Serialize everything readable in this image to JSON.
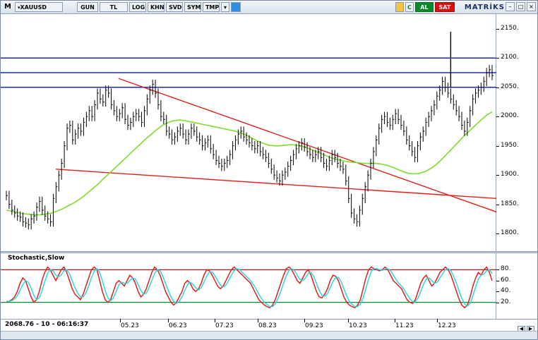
{
  "toolbar": {
    "menu_label": "M",
    "symbol": "XAUUSD",
    "period": "GUN",
    "currency": "TL",
    "buttons": [
      "LOG",
      "KHN",
      "SVD",
      "SYM",
      "TMP"
    ],
    "buy_label": "AL",
    "sell_label": "SAT",
    "brand": "MATRİKS"
  },
  "colors": {
    "price_bars": "#000000",
    "moving_average": "#7ddc2c",
    "trend_lines": "#e0201a",
    "horizontal_levels": "#1a2bb0",
    "stoch_k": "#e0201a",
    "stoch_d": "#2ed6e0",
    "stoch_bounds": "#0a8a2a"
  },
  "status": {
    "readout": "2068.76 - 10 - 06:16:37"
  },
  "chart_data": [
    {
      "type": "line",
      "panel": "price",
      "ylim": [
        1770,
        2175
      ],
      "y_ticks": [
        "1800.",
        "1850.",
        "1900.",
        "1950.",
        "2000.",
        "2050.",
        "2100.",
        "2150."
      ],
      "x_ticks": [
        "05.23",
        "06.23",
        "07.23",
        "08.23",
        "09.23",
        "10.23",
        "11.23",
        "12.23"
      ],
      "horizontal_levels": [
        2100,
        2075,
        2050
      ],
      "series": [
        {
          "role": "price_bars",
          "values": [
            1865,
            1850,
            1840,
            1835,
            1830,
            1828,
            1820,
            1818,
            1815,
            1825,
            1830,
            1845,
            1855,
            1840,
            1830,
            1825,
            1820,
            1860,
            1880,
            1900,
            1920,
            1950,
            1980,
            1985,
            1960,
            1970,
            1980,
            1975,
            1990,
            2000,
            2010,
            2000,
            2020,
            2040,
            2030,
            2025,
            2045,
            2040,
            2020,
            2010,
            2000,
            2005,
            2015,
            1995,
            1985,
            1990,
            2000,
            2005,
            2000,
            1990,
            2010,
            2030,
            2045,
            2055,
            2040,
            2020,
            2000,
            1995,
            1975,
            1970,
            1960,
            1965,
            1975,
            1980,
            1970,
            1960,
            1970,
            1980,
            1975,
            1965,
            1960,
            1950,
            1955,
            1960,
            1945,
            1935,
            1925,
            1920,
            1915,
            1920,
            1925,
            1935,
            1950,
            1960,
            1970,
            1975,
            1965,
            1960,
            1955,
            1950,
            1945,
            1950,
            1940,
            1935,
            1930,
            1920,
            1910,
            1900,
            1895,
            1890,
            1900,
            1905,
            1915,
            1925,
            1935,
            1945,
            1950,
            1955,
            1948,
            1940,
            1935,
            1930,
            1935,
            1940,
            1930,
            1920,
            1915,
            1925,
            1935,
            1930,
            1920,
            1915,
            1910,
            1890,
            1860,
            1835,
            1825,
            1820,
            1840,
            1860,
            1880,
            1900,
            1920,
            1940,
            1960,
            1980,
            1995,
            2000,
            1990,
            1985,
            1995,
            2005,
            1995,
            1985,
            1975,
            1960,
            1950,
            1940,
            1930,
            1950,
            1965,
            1975,
            1990,
            2000,
            2010,
            2020,
            2035,
            2045,
            2060,
            2050,
            2040,
            2030,
            2020,
            2010,
            2000,
            1985,
            1975,
            1990,
            2010,
            2030,
            2040,
            2045,
            2050,
            2060,
            2075,
            2080,
            2070
          ]
        },
        {
          "role": "moving_average",
          "values": [
            1840,
            1838,
            1836,
            1834,
            1833,
            1832,
            1832,
            1833,
            1835,
            1838,
            1842,
            1847,
            1852,
            1858,
            1865,
            1873,
            1881,
            1890,
            1899,
            1908,
            1917,
            1926,
            1935,
            1944,
            1953,
            1962,
            1970,
            1978,
            1985,
            1990,
            1993,
            1994,
            1993,
            1991,
            1989,
            1987,
            1985,
            1983,
            1981,
            1979,
            1977,
            1975,
            1972,
            1968,
            1963,
            1958,
            1954,
            1951,
            1950,
            1950,
            1951,
            1952,
            1951,
            1949,
            1946,
            1942,
            1938,
            1934,
            1930,
            1927,
            1925,
            1923,
            1922,
            1921,
            1920,
            1920,
            1920,
            1919,
            1917,
            1914,
            1910,
            1906,
            1903,
            1902,
            1903,
            1906,
            1911,
            1918,
            1927,
            1937,
            1947,
            1957,
            1967,
            1976,
            1985,
            1994,
            2002,
            2008
          ]
        }
      ],
      "trend_lines": [
        {
          "from": [
            "04.23",
            2065
          ],
          "to": [
            "end",
            1837
          ]
        },
        {
          "from": [
            "04.23",
            1910
          ],
          "to": [
            "end",
            1860
          ]
        }
      ]
    },
    {
      "type": "line",
      "panel": "stochastic",
      "title": "Stochastic,Slow",
      "ylim": [
        0,
        100
      ],
      "y_ticks": [
        "80.",
        "60.",
        "40.",
        "20."
      ],
      "bounds": [
        80,
        20
      ],
      "series": [
        {
          "role": "stoch_k",
          "values": [
            20,
            22,
            25,
            30,
            40,
            55,
            65,
            60,
            45,
            30,
            20,
            25,
            40,
            60,
            75,
            85,
            80,
            70,
            60,
            70,
            80,
            85,
            75,
            60,
            45,
            35,
            30,
            25,
            35,
            50,
            65,
            80,
            85,
            80,
            60,
            40,
            25,
            20,
            25,
            40,
            55,
            60,
            55,
            50,
            60,
            70,
            65,
            55,
            40,
            30,
            35,
            45,
            60,
            75,
            85,
            80,
            70,
            55,
            40,
            30,
            20,
            15,
            20,
            30,
            40,
            55,
            60,
            55,
            45,
            40,
            45,
            55,
            70,
            80,
            78,
            70,
            60,
            50,
            45,
            50,
            60,
            70,
            80,
            85,
            80,
            75,
            70,
            65,
            60,
            55,
            45,
            35,
            25,
            20,
            15,
            12,
            10,
            15,
            25,
            40,
            55,
            70,
            82,
            85,
            80,
            70,
            60,
            55,
            65,
            75,
            80,
            70,
            55,
            40,
            30,
            28,
            35,
            45,
            60,
            70,
            68,
            60,
            45,
            30,
            20,
            15,
            12,
            10,
            15,
            25,
            45,
            65,
            80,
            85,
            82,
            80,
            78,
            80,
            85,
            80,
            70,
            60,
            55,
            50,
            45,
            35,
            25,
            20,
            18,
            25,
            40,
            55,
            65,
            70,
            60,
            50,
            55,
            65,
            75,
            80,
            85,
            80,
            70,
            55,
            40,
            25,
            15,
            10,
            15,
            30,
            50,
            65,
            75,
            70,
            80,
            85,
            75,
            60
          ]
        },
        {
          "role": "stoch_d",
          "values": [
            22,
            22,
            23,
            26,
            32,
            42,
            53,
            60,
            57,
            47,
            33,
            25,
            28,
            42,
            58,
            73,
            80,
            78,
            70,
            67,
            70,
            78,
            80,
            73,
            60,
            47,
            37,
            30,
            30,
            37,
            50,
            65,
            77,
            82,
            75,
            60,
            42,
            28,
            23,
            28,
            40,
            52,
            57,
            55,
            55,
            60,
            65,
            63,
            53,
            42,
            35,
            37,
            47,
            60,
            73,
            80,
            78,
            68,
            55,
            42,
            30,
            22,
            18,
            22,
            30,
            42,
            52,
            57,
            53,
            47,
            43,
            47,
            57,
            68,
            76,
            76,
            69,
            60,
            52,
            48,
            52,
            60,
            70,
            78,
            82,
            80,
            75,
            70,
            65,
            60,
            53,
            45,
            35,
            27,
            20,
            16,
            12,
            12,
            17,
            27,
            40,
            55,
            69,
            79,
            82,
            78,
            70,
            62,
            60,
            65,
            73,
            75,
            68,
            55,
            42,
            33,
            31,
            36,
            47,
            58,
            66,
            66,
            58,
            45,
            32,
            22,
            16,
            12,
            12,
            17,
            28,
            45,
            63,
            77,
            82,
            82,
            80,
            79,
            81,
            82,
            78,
            70,
            62,
            55,
            50,
            43,
            35,
            27,
            21,
            21,
            28,
            40,
            53,
            63,
            65,
            60,
            55,
            57,
            65,
            73,
            80,
            82,
            78,
            68,
            55,
            40,
            27,
            17,
            13,
            18,
            32,
            48,
            63,
            70,
            72,
            78,
            80,
            73
          ]
        }
      ]
    }
  ]
}
